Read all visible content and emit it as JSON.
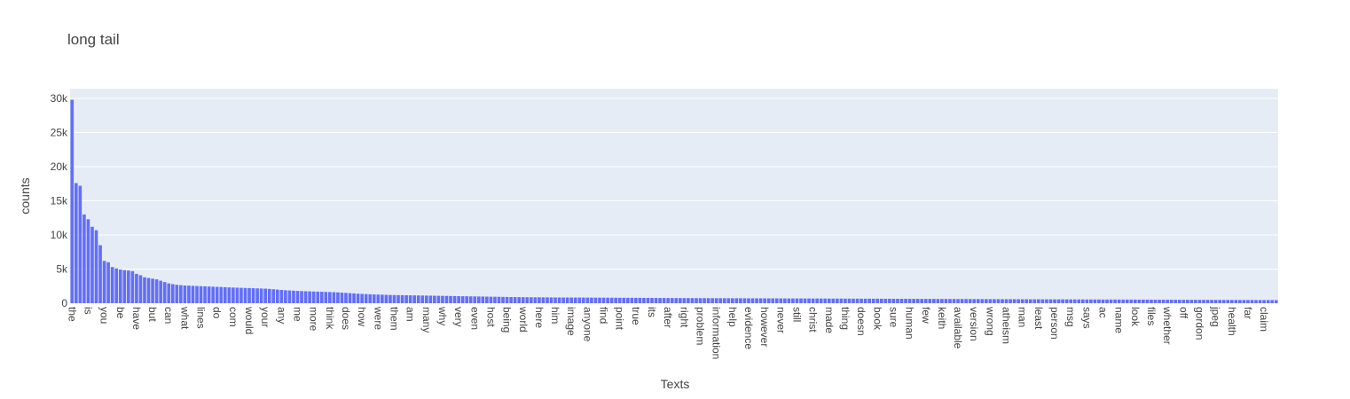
{
  "chart_data": {
    "type": "bar",
    "title": "long tail",
    "xlabel": "Texts",
    "ylabel": "counts",
    "color": "#636efa",
    "grid": true,
    "ylim": [
      0,
      31430
    ],
    "yticks": [
      0,
      {
        "value": 5000,
        "label": "5k"
      },
      {
        "value": 10000,
        "label": "10k"
      },
      {
        "value": 15000,
        "label": "15k"
      },
      {
        "value": 20000,
        "label": "20k"
      },
      {
        "value": 25000,
        "label": "25k"
      },
      {
        "value": 30000,
        "label": "30k"
      }
    ],
    "categories": [
      "the",
      null,
      null,
      null,
      "is",
      null,
      null,
      null,
      "you",
      null,
      null,
      null,
      "be",
      null,
      null,
      null,
      "have",
      null,
      null,
      null,
      "but",
      null,
      null,
      null,
      "can",
      null,
      null,
      null,
      "what",
      null,
      null,
      null,
      "lines",
      null,
      null,
      null,
      "do",
      null,
      null,
      null,
      "com",
      null,
      null,
      null,
      "would",
      null,
      null,
      null,
      "your",
      null,
      null,
      null,
      "any",
      null,
      null,
      null,
      "me",
      null,
      null,
      null,
      "more",
      null,
      null,
      null,
      "think",
      null,
      null,
      null,
      "does",
      null,
      null,
      null,
      "how",
      null,
      null,
      null,
      "were",
      null,
      null,
      null,
      "them",
      null,
      null,
      null,
      "am",
      null,
      null,
      null,
      "many",
      null,
      null,
      null,
      "why",
      null,
      null,
      null,
      "very",
      null,
      null,
      null,
      "even",
      null,
      null,
      null,
      "host",
      null,
      null,
      null,
      "being",
      null,
      null,
      null,
      "world",
      null,
      null,
      null,
      "here",
      null,
      null,
      null,
      "him",
      null,
      null,
      null,
      "image",
      null,
      null,
      null,
      "anyone",
      null,
      null,
      null,
      "find",
      null,
      null,
      null,
      "point",
      null,
      null,
      null,
      "true",
      null,
      null,
      null,
      "its",
      null,
      null,
      null,
      "after",
      null,
      null,
      null,
      "right",
      null,
      null,
      null,
      "problem",
      null,
      null,
      null,
      "information",
      null,
      null,
      null,
      "help",
      null,
      null,
      null,
      "evidence",
      null,
      null,
      null,
      "however",
      null,
      null,
      null,
      "never",
      null,
      null,
      null,
      "still",
      null,
      null,
      null,
      "christ",
      null,
      null,
      null,
      "made",
      null,
      null,
      null,
      "thing",
      null,
      null,
      null,
      "doesn",
      null,
      null,
      null,
      "book",
      null,
      null,
      null,
      "sure",
      null,
      null,
      null,
      "human",
      null,
      null,
      null,
      "few",
      null,
      null,
      null,
      "keith",
      null,
      null,
      null,
      "available",
      null,
      null,
      null,
      "version",
      null,
      null,
      null,
      "wrong",
      null,
      null,
      null,
      "atheism",
      null,
      null,
      null,
      "man",
      null,
      null,
      null,
      "least",
      null,
      null,
      null,
      "person",
      null,
      null,
      null,
      "msg",
      null,
      null,
      null,
      "says",
      null,
      null,
      null,
      "ac",
      null,
      null,
      null,
      "name",
      null,
      null,
      null,
      "look",
      null,
      null,
      null,
      "files",
      null,
      null,
      null,
      "whether",
      null,
      null,
      null,
      "off",
      null,
      null,
      null,
      "gordon",
      null,
      null,
      null,
      "jpeg",
      null,
      null,
      null,
      "health",
      null,
      null,
      null,
      "far",
      null,
      null,
      null,
      "claim",
      null,
      null,
      null
    ],
    "values": [
      29800,
      17600,
      17200,
      13000,
      12300,
      11200,
      10700,
      8500,
      6200,
      6000,
      5300,
      5100,
      4950,
      4850,
      4800,
      4700,
      4300,
      4100,
      3800,
      3700,
      3600,
      3500,
      3300,
      3100,
      2900,
      2800,
      2700,
      2650,
      2600,
      2580,
      2550,
      2520,
      2500,
      2480,
      2450,
      2420,
      2400,
      2380,
      2350,
      2320,
      2300,
      2280,
      2260,
      2240,
      2220,
      2200,
      2180,
      2160,
      2140,
      2100,
      2050,
      2000,
      1950,
      1900,
      1870,
      1840,
      1810,
      1780,
      1760,
      1740,
      1720,
      1700,
      1680,
      1660,
      1640,
      1620,
      1590,
      1560,
      1520,
      1480,
      1440,
      1400,
      1370,
      1340,
      1310,
      1290,
      1270,
      1250,
      1230,
      1210,
      1200,
      1190,
      1180,
      1170,
      1160,
      1150,
      1140,
      1130,
      1120,
      1110,
      1100,
      1090,
      1080,
      1070,
      1060,
      1050,
      1040,
      1030,
      1020,
      1010,
      1000,
      990,
      980,
      970,
      960,
      950,
      940,
      930,
      920,
      910,
      900,
      895,
      890,
      885,
      880,
      875,
      870,
      865,
      860,
      855,
      850,
      847,
      844,
      841,
      838,
      835,
      832,
      829,
      826,
      823,
      820,
      817,
      814,
      811,
      808,
      805,
      802,
      799,
      796,
      793,
      790,
      787,
      784,
      781,
      778,
      775,
      772,
      769,
      766,
      763,
      760,
      758,
      756,
      754,
      752,
      750,
      748,
      746,
      744,
      742,
      740,
      738,
      736,
      734,
      732,
      730,
      728,
      726,
      724,
      722,
      720,
      718,
      716,
      714,
      712,
      710,
      708,
      706,
      704,
      702,
      700,
      698,
      696,
      694,
      692,
      690,
      688,
      686,
      684,
      682,
      680,
      678,
      676,
      674,
      672,
      670,
      668,
      666,
      664,
      662,
      660,
      658,
      656,
      654,
      652,
      650,
      648,
      646,
      644,
      642,
      640,
      638,
      636,
      634,
      632,
      630,
      628,
      626,
      624,
      622,
      620,
      618,
      616,
      614,
      612,
      610,
      608,
      606,
      604,
      602,
      600,
      598,
      596,
      594,
      592,
      590,
      588,
      586,
      584,
      582,
      580,
      578,
      576,
      574,
      572,
      570,
      568,
      566,
      564,
      562,
      560,
      558,
      556,
      554,
      552,
      550,
      548,
      546,
      544,
      542,
      540,
      538,
      536,
      534,
      532,
      530,
      528,
      526,
      524,
      522,
      520,
      518,
      516,
      514,
      512,
      510,
      508,
      506,
      504,
      502,
      500,
      498,
      496,
      494,
      492,
      490,
      488,
      486,
      484,
      482,
      480,
      478,
      476,
      474,
      472,
      470,
      468,
      466,
      464,
      462
    ]
  }
}
